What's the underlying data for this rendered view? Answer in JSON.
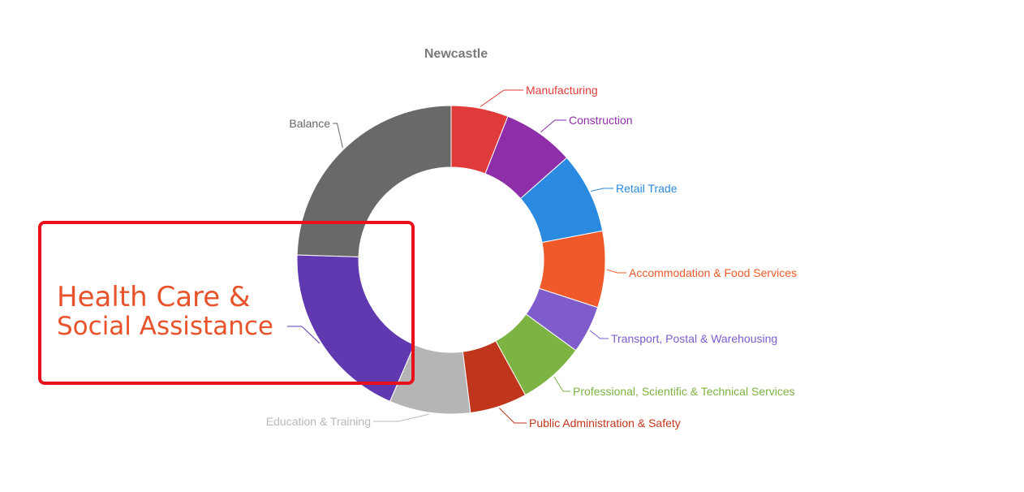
{
  "chart_data": {
    "type": "pie",
    "title": "Newcastle",
    "categories": [
      "Manufacturing",
      "Construction",
      "Retail Trade",
      "Accommodation & Food Services",
      "Transport, Postal & Warehousing",
      "Professional, Scientific & Technical Services",
      "Public Administration & Safety",
      "Education & Training",
      "Health Care & Social Assistance",
      "Balance"
    ],
    "values": [
      6.0,
      7.5,
      8.5,
      8.0,
      5.0,
      7.0,
      6.0,
      8.5,
      19.0,
      24.5
    ],
    "colors": [
      "#e03a3a",
      "#8e2ea8",
      "#2a8ae0",
      "#f05a2a",
      "#7e5ccc",
      "#7cb342",
      "#c0361c",
      "#b5b5b5",
      "#6038b0",
      "#696969"
    ],
    "label_colors": [
      "#e03a3a",
      "#8e2ea8",
      "#2a8ae0",
      "#f05a2a",
      "#7e5ccc",
      "#7cb342",
      "#c0361c",
      "#b8b8b8",
      "#6038b0",
      "#666666"
    ],
    "inner_radius_ratio": 0.6,
    "legend": "none"
  },
  "annotation": {
    "line1": "Health Care &",
    "line2": "Social Assistance",
    "color": "#e8532c",
    "box_color": "#e8101a"
  }
}
